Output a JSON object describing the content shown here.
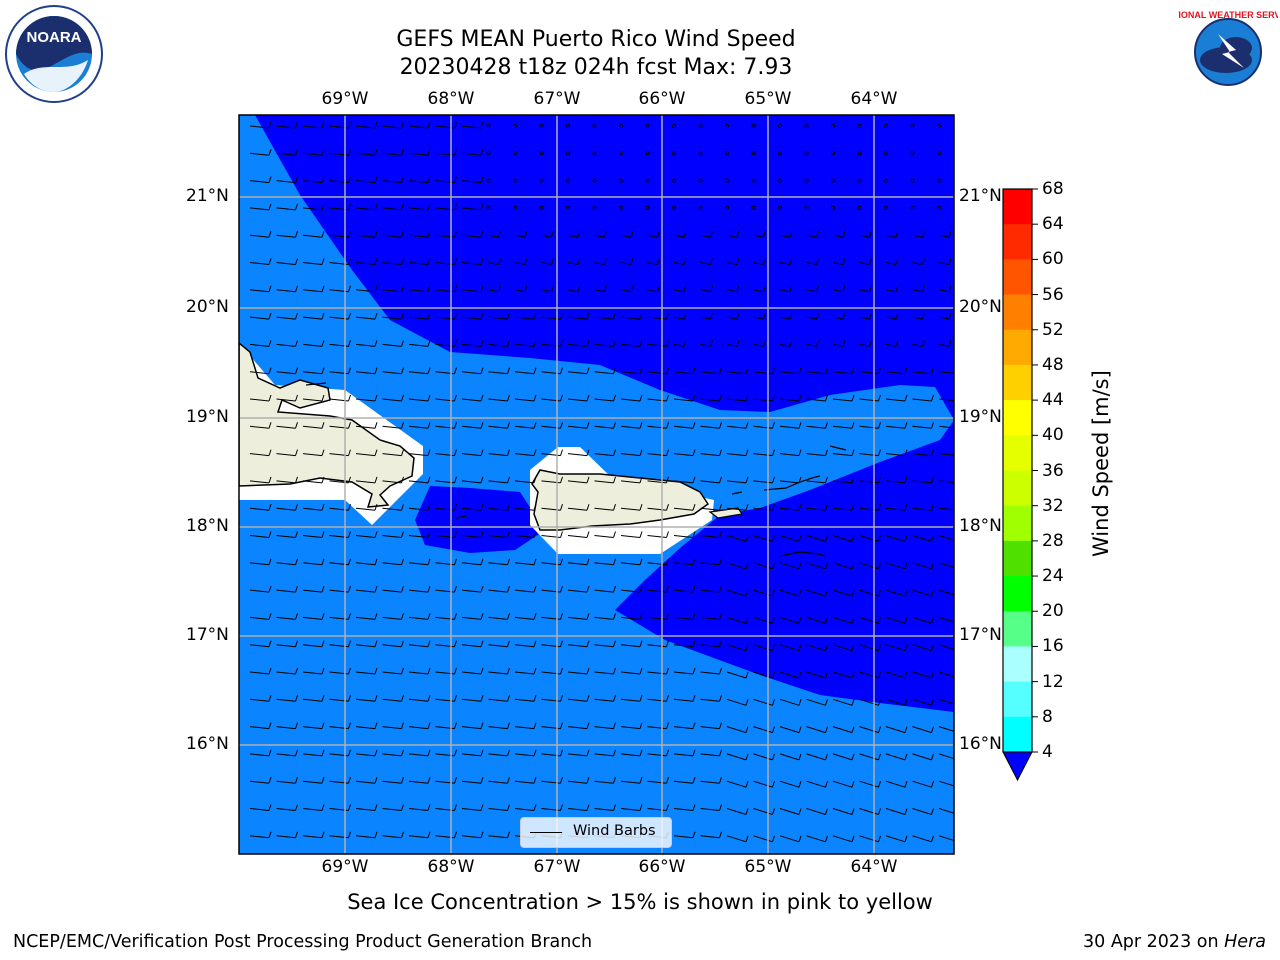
{
  "title": {
    "line1": "GEFS MEAN Puerto Rico Wind Speed",
    "line2": "20230428 t18z 024h fcst   Max: 7.93"
  },
  "logos": {
    "left": {
      "text": "NOARA",
      "ring_text": "NATIONAL OCEANIC AND ATMOSPHERIC ADMINISTRATION · U.S. DEPARTMENT OF COMMERCE"
    },
    "right": {
      "text": "NATIONAL WEATHER SERVICE"
    }
  },
  "map": {
    "lon_labels_top": [
      "69°W",
      "68°W",
      "67°W",
      "66°W",
      "65°W",
      "64°W"
    ],
    "lon_labels_bottom": [
      "69°W",
      "68°W",
      "67°W",
      "66°W",
      "65°W",
      "64°W"
    ],
    "lat_labels_left": [
      "21°N",
      "20°N",
      "19°N",
      "18°N",
      "17°N",
      "16°N"
    ],
    "lat_labels_right": [
      "21°N",
      "20°N",
      "19°N",
      "18°N",
      "17°N",
      "16°N"
    ],
    "colors": {
      "dark_blue": "#0000ff",
      "mid_blue": "#0a84ff",
      "land": "#eeeedd",
      "mask": "#ffffff",
      "grid": "#b0b0b0"
    }
  },
  "legend": {
    "label": "Wind Barbs"
  },
  "colorbar": {
    "label": "Wind Speed [m/s]",
    "ticks": [
      "68",
      "64",
      "60",
      "56",
      "52",
      "48",
      "44",
      "40",
      "36",
      "32",
      "28",
      "24",
      "20",
      "16",
      "12",
      "8",
      "4"
    ],
    "colors": [
      "#ff0000",
      "#ff2a00",
      "#ff5500",
      "#ff8000",
      "#ffaa00",
      "#ffd000",
      "#ffff00",
      "#e6ff00",
      "#ccff00",
      "#a0ff00",
      "#50e000",
      "#00ff00",
      "#55ff88",
      "#aaffff",
      "#55ffff",
      "#00ffff",
      "#00ccff",
      "#0a84ff"
    ],
    "extend_color": "#0000ff"
  },
  "note": "Sea Ice Concentration > 15% is shown in pink to yellow",
  "footer": {
    "left": "NCEP/EMC/Verification Post Processing Product Generation Branch",
    "right_prefix": "30 Apr 2023 on ",
    "right_machine": "Hera"
  }
}
